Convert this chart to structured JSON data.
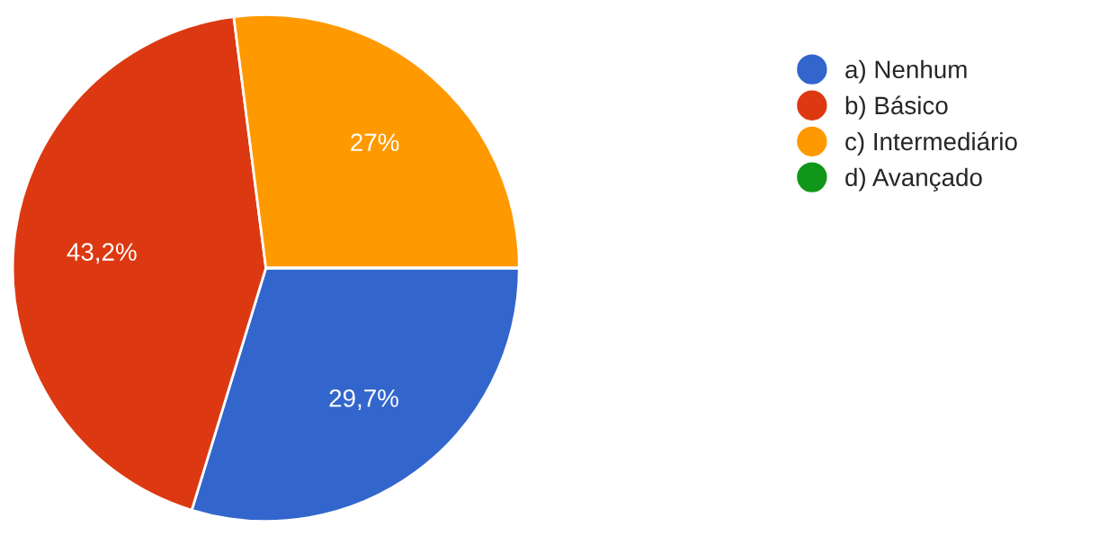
{
  "chart_data": {
    "type": "pie",
    "categories": [
      "a) Nenhum",
      "b) Básico",
      "c) Intermediário",
      "d) Avançado"
    ],
    "values": [
      29.7,
      43.2,
      27,
      0
    ],
    "colors": [
      "#3366cc",
      "#dc3912",
      "#ff9900",
      "#109618"
    ],
    "value_labels": [
      "29,7%",
      "43,2%",
      "27%",
      null
    ],
    "legend": "right"
  }
}
